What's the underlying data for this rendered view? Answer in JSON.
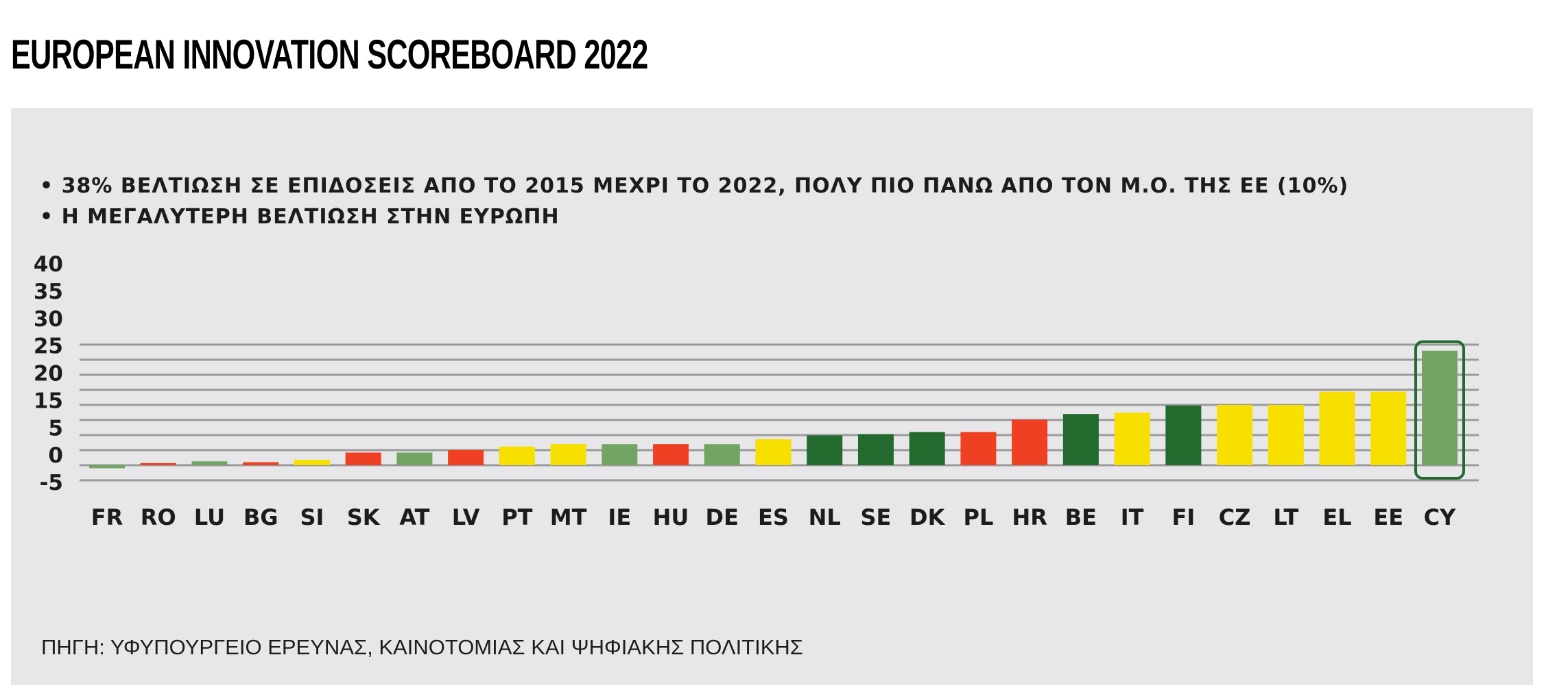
{
  "title": "EUROPEAN INNOVATION SCOREBOARD 2022",
  "bullets": [
    "• 38% ΒΕΛΤΙΩΣΗ ΣΕ ΕΠΙΔΟΣΕΙΣ ΑΠΟ ΤΟ 2015 ΜΕΧΡΙ ΤΟ 2022, ΠΟΛΥ ΠΙΟ ΠΑΝΩ ΑΠΟ ΤΟΝ Μ.Ο. ΤΗΣ ΕΕ (10%)",
    "• Η ΜΕΓΑΛΥΤΕΡΗ ΒΕΛΤΙΩΣΗ ΣΤΗΝ ΕΥΡΩΠΗ"
  ],
  "source": "ΠΗΓΗ: ΥΦΥΠΟΥΡΓΕΙΟ ΕΡΕΥΝΑΣ, ΚΑΙΝΟΤΟΜΙΑΣ ΚΑΙ ΨΗΦΙΑΚΗΣ ΠΟΛΙΤΙΚΗΣ",
  "colors": {
    "light_green": "#72a564",
    "red": "#ef4023",
    "yellow": "#f7df00",
    "dark_green": "#226a2d",
    "grid": "#9a9a9a",
    "highlight_border": "#226a2d",
    "panel_bg": "#e7e7e9"
  },
  "chart_data": {
    "type": "bar",
    "title": "",
    "xlabel": "",
    "ylabel": "",
    "ylim": [
      -5,
      40
    ],
    "yticks": [
      40,
      35,
      30,
      25,
      20,
      15,
      5,
      0,
      -5
    ],
    "grid": true,
    "categories": [
      "FR",
      "RO",
      "LU",
      "BG",
      "SI",
      "SK",
      "AT",
      "LV",
      "PT",
      "MT",
      "IE",
      "HU",
      "DE",
      "ES",
      "NL",
      "SE",
      "DK",
      "PL",
      "HR",
      "BE",
      "IT",
      "FI",
      "CZ",
      "LT",
      "EL",
      "EE",
      "CY"
    ],
    "values": [
      -1,
      0.7,
      1.3,
      1,
      1.8,
      4.2,
      4.2,
      5,
      6.2,
      7,
      7,
      7,
      7,
      8.6,
      9.9,
      10.3,
      11,
      11,
      15.1,
      17,
      17.4,
      19.8,
      20,
      20,
      24.4,
      24.4,
      38
    ],
    "bar_colors": [
      "light_green",
      "red",
      "light_green",
      "red",
      "yellow",
      "red",
      "light_green",
      "red",
      "yellow",
      "yellow",
      "light_green",
      "red",
      "light_green",
      "yellow",
      "dark_green",
      "dark_green",
      "dark_green",
      "red",
      "red",
      "dark_green",
      "yellow",
      "dark_green",
      "yellow",
      "yellow",
      "yellow",
      "yellow",
      "light_green"
    ],
    "highlight": "CY"
  }
}
